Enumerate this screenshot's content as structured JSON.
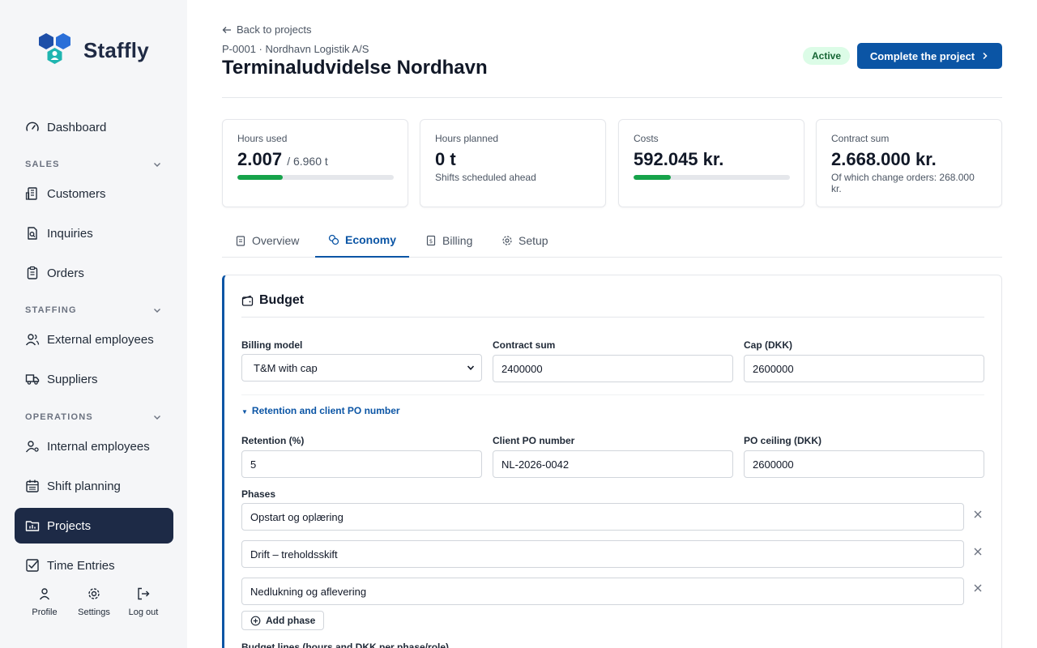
{
  "app": {
    "name": "Staffly",
    "colors": {
      "accent": "#0b55a5",
      "sidebar_active": "#1d2a46",
      "success": "#16a34a",
      "logo_blue": "#2a6fd8",
      "logo_teal": "#1fb5b0"
    }
  },
  "sidebar": {
    "dashboard": "Dashboard",
    "sections": {
      "sales": "SALES",
      "staffing": "STAFFING",
      "operations": "OPERATIONS"
    },
    "items": {
      "customers": "Customers",
      "inquiries": "Inquiries",
      "orders": "Orders",
      "external_employees": "External employees",
      "suppliers": "Suppliers",
      "internal_employees": "Internal employees",
      "shift_planning": "Shift planning",
      "projects": "Projects",
      "time_entries": "Time Entries"
    },
    "footer": {
      "profile": "Profile",
      "settings": "Settings",
      "logout": "Log out"
    }
  },
  "header": {
    "back": "Back to projects",
    "meta": "P-0001 · Nordhavn Logistik A/S",
    "title": "Terminaludvidelse Nordhavn",
    "status": "Active",
    "complete": "Complete the project"
  },
  "stats": {
    "hours_used": {
      "label": "Hours used",
      "value": "2.007",
      "sub": "/ 6.960 t",
      "progress": 0.29
    },
    "hours_planned": {
      "label": "Hours planned",
      "value": "0 t",
      "note": "Shifts scheduled ahead"
    },
    "costs": {
      "label": "Costs",
      "value": "592.045 kr.",
      "progress": 0.24
    },
    "contract_sum": {
      "label": "Contract sum",
      "value": "2.668.000 kr.",
      "note": "Of which change orders: 268.000 kr."
    }
  },
  "tabs": {
    "overview": "Overview",
    "economy": "Economy",
    "billing": "Billing",
    "setup": "Setup",
    "active": "economy"
  },
  "budget": {
    "title": "Budget",
    "billing_model": {
      "label": "Billing model",
      "value": "T&M with cap"
    },
    "contract_sum": {
      "label": "Contract sum",
      "value": "2400000"
    },
    "cap": {
      "label": "Cap (DKK)",
      "value": "2600000"
    },
    "retention_toggle": "Retention and client PO number",
    "retention": {
      "label": "Retention (%)",
      "value": "5"
    },
    "client_po": {
      "label": "Client PO number",
      "value": "NL-2026-0042"
    },
    "po_ceiling": {
      "label": "PO ceiling (DKK)",
      "value": "2600000"
    },
    "phases_label": "Phases",
    "phases": [
      "Opstart og oplæring",
      "Drift – treholdsskift",
      "Nedlukning og aflevering"
    ],
    "add_phase": "Add phase",
    "budget_lines_label": "Budget lines (hours and DKK per phase/role)"
  }
}
